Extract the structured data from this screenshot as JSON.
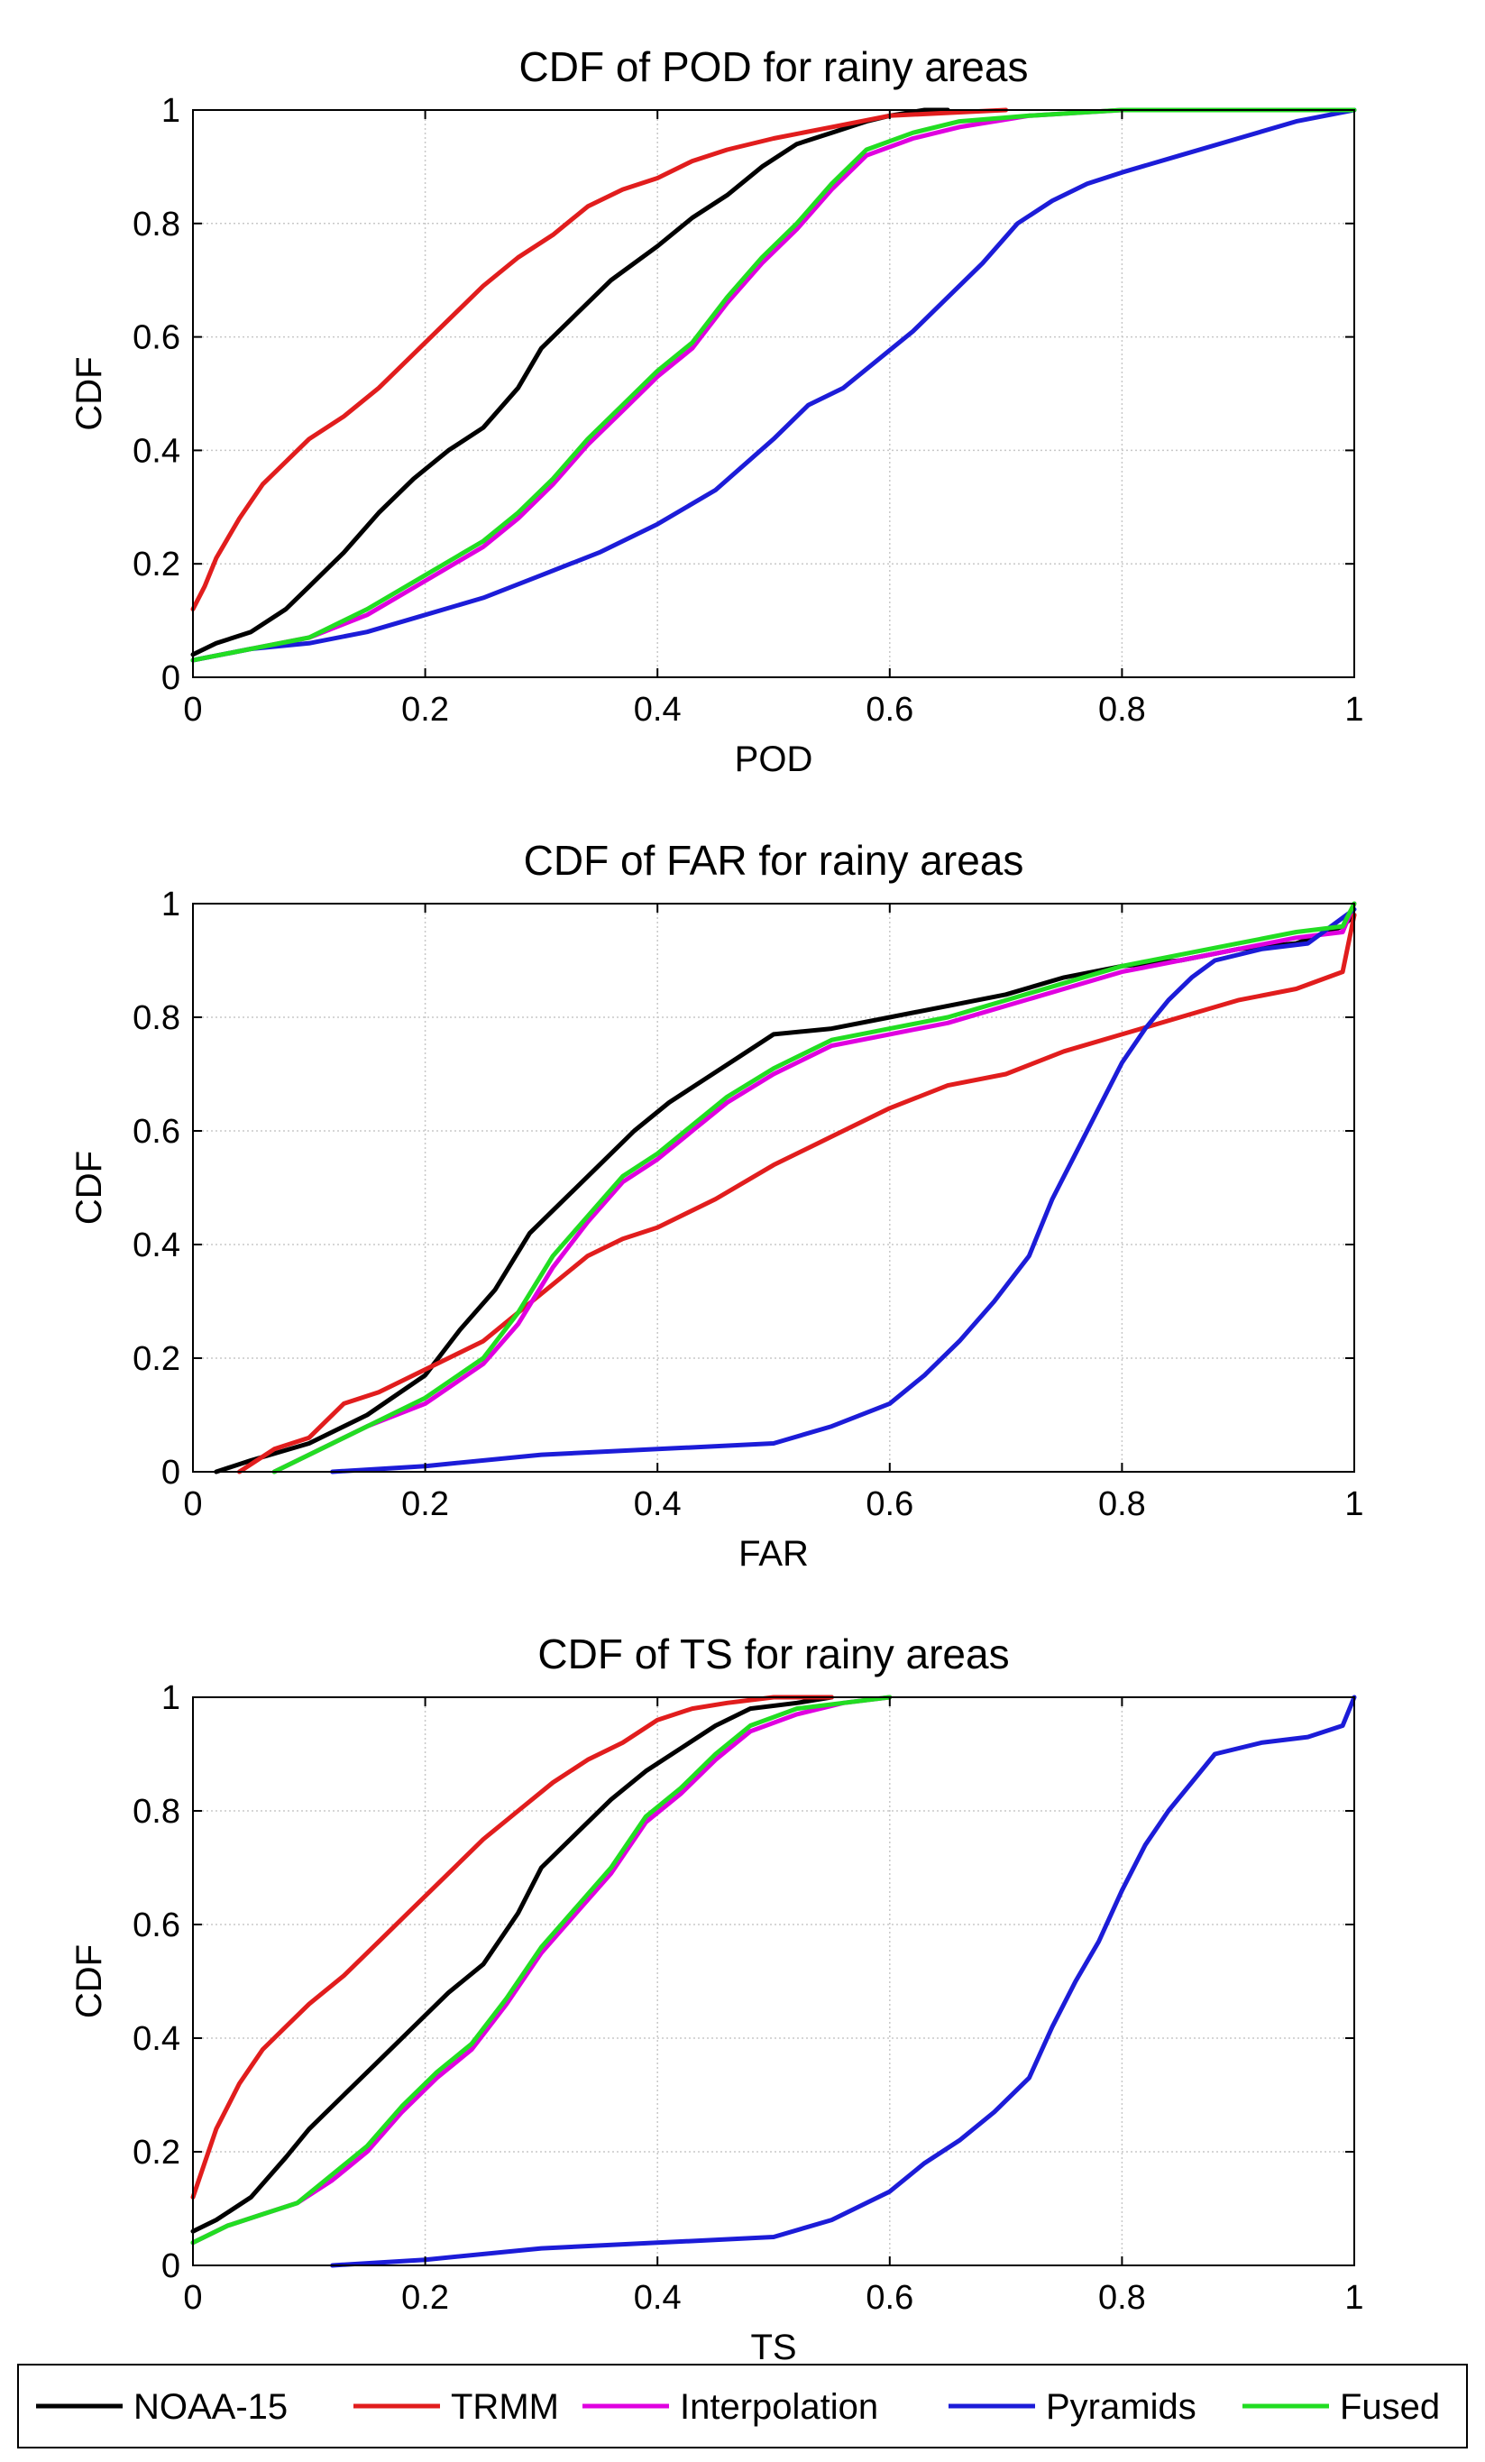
{
  "chart_data": [
    {
      "type": "line",
      "title": "CDF of POD for rainy areas",
      "xlabel": "POD",
      "ylabel": "CDF",
      "xlim": [
        0,
        1
      ],
      "ylim": [
        0,
        1
      ],
      "xticks": [
        "0",
        "0.2",
        "0.4",
        "0.6",
        "0.8",
        "1"
      ],
      "yticks": [
        "0",
        "0.2",
        "0.4",
        "0.6",
        "0.8",
        "1"
      ],
      "grid": true,
      "series": [
        {
          "name": "NOAA-15",
          "color": "#000000",
          "x": [
            0,
            0.02,
            0.05,
            0.08,
            0.1,
            0.13,
            0.16,
            0.19,
            0.22,
            0.25,
            0.28,
            0.3,
            0.33,
            0.36,
            0.4,
            0.43,
            0.46,
            0.49,
            0.52,
            0.55,
            0.58,
            0.6,
            0.63,
            0.65
          ],
          "y": [
            0.04,
            0.06,
            0.08,
            0.12,
            0.16,
            0.22,
            0.29,
            0.35,
            0.4,
            0.44,
            0.51,
            0.58,
            0.64,
            0.7,
            0.76,
            0.81,
            0.85,
            0.9,
            0.94,
            0.96,
            0.98,
            0.99,
            1.0,
            1.0
          ]
        },
        {
          "name": "TRMM",
          "color": "#e11d1d",
          "x": [
            0,
            0.01,
            0.02,
            0.04,
            0.06,
            0.08,
            0.1,
            0.13,
            0.16,
            0.19,
            0.22,
            0.25,
            0.28,
            0.31,
            0.34,
            0.37,
            0.4,
            0.43,
            0.46,
            0.5,
            0.55,
            0.6,
            0.65,
            0.7
          ],
          "y": [
            0.12,
            0.16,
            0.21,
            0.28,
            0.34,
            0.38,
            0.42,
            0.46,
            0.51,
            0.57,
            0.63,
            0.69,
            0.74,
            0.78,
            0.83,
            0.86,
            0.88,
            0.91,
            0.93,
            0.95,
            0.97,
            0.99,
            0.995,
            1.0
          ]
        },
        {
          "name": "Interpolation",
          "color": "#e000e0",
          "x": [
            0,
            0.05,
            0.1,
            0.15,
            0.2,
            0.25,
            0.28,
            0.31,
            0.34,
            0.37,
            0.4,
            0.43,
            0.46,
            0.49,
            0.52,
            0.55,
            0.58,
            0.62,
            0.66,
            0.72,
            0.8,
            0.9,
            1.0
          ],
          "y": [
            0.03,
            0.05,
            0.07,
            0.11,
            0.17,
            0.23,
            0.28,
            0.34,
            0.41,
            0.47,
            0.53,
            0.58,
            0.66,
            0.73,
            0.79,
            0.86,
            0.92,
            0.95,
            0.97,
            0.99,
            1.0,
            1.0,
            1.0
          ]
        },
        {
          "name": "Pyramids",
          "color": "#1c1cd8",
          "x": [
            0,
            0.05,
            0.1,
            0.15,
            0.2,
            0.25,
            0.3,
            0.35,
            0.4,
            0.45,
            0.5,
            0.53,
            0.56,
            0.59,
            0.62,
            0.65,
            0.68,
            0.71,
            0.74,
            0.77,
            0.8,
            0.85,
            0.9,
            0.95,
            1.0
          ],
          "y": [
            0.03,
            0.05,
            0.06,
            0.08,
            0.11,
            0.14,
            0.18,
            0.22,
            0.27,
            0.33,
            0.42,
            0.48,
            0.51,
            0.56,
            0.61,
            0.67,
            0.73,
            0.8,
            0.84,
            0.87,
            0.89,
            0.92,
            0.95,
            0.98,
            1.0
          ]
        },
        {
          "name": "Fused",
          "color": "#22dd22",
          "x": [
            0,
            0.05,
            0.1,
            0.15,
            0.2,
            0.25,
            0.28,
            0.31,
            0.34,
            0.37,
            0.4,
            0.43,
            0.46,
            0.49,
            0.52,
            0.55,
            0.58,
            0.62,
            0.66,
            0.72,
            0.8,
            0.9,
            1.0
          ],
          "y": [
            0.03,
            0.05,
            0.07,
            0.12,
            0.18,
            0.24,
            0.29,
            0.35,
            0.42,
            0.48,
            0.54,
            0.59,
            0.67,
            0.74,
            0.8,
            0.87,
            0.93,
            0.96,
            0.98,
            0.99,
            1.0,
            1.0,
            1.0
          ]
        }
      ]
    },
    {
      "type": "line",
      "title": "CDF of FAR for rainy areas",
      "xlabel": "FAR",
      "ylabel": "CDF",
      "xlim": [
        0,
        1
      ],
      "ylim": [
        0,
        1
      ],
      "xticks": [
        "0",
        "0.2",
        "0.4",
        "0.6",
        "0.8",
        "1"
      ],
      "yticks": [
        "0",
        "0.2",
        "0.4",
        "0.6",
        "0.8",
        "1"
      ],
      "grid": true,
      "series": [
        {
          "name": "NOAA-15",
          "color": "#000000",
          "x": [
            0.02,
            0.05,
            0.1,
            0.15,
            0.2,
            0.23,
            0.26,
            0.29,
            0.32,
            0.35,
            0.38,
            0.41,
            0.44,
            0.47,
            0.5,
            0.55,
            0.6,
            0.65,
            0.7,
            0.75,
            0.8,
            0.85,
            0.9,
            0.95,
            0.99,
            1.0
          ],
          "y": [
            0.0,
            0.02,
            0.05,
            0.1,
            0.17,
            0.25,
            0.32,
            0.42,
            0.48,
            0.54,
            0.6,
            0.65,
            0.69,
            0.73,
            0.77,
            0.78,
            0.8,
            0.82,
            0.84,
            0.87,
            0.89,
            0.9,
            0.92,
            0.93,
            0.96,
            0.98
          ]
        },
        {
          "name": "TRMM",
          "color": "#e11d1d",
          "x": [
            0.04,
            0.07,
            0.1,
            0.13,
            0.16,
            0.19,
            0.22,
            0.25,
            0.28,
            0.31,
            0.34,
            0.37,
            0.4,
            0.45,
            0.5,
            0.55,
            0.6,
            0.65,
            0.7,
            0.75,
            0.8,
            0.85,
            0.9,
            0.95,
            0.99,
            1.0
          ],
          "y": [
            0.0,
            0.04,
            0.06,
            0.12,
            0.14,
            0.17,
            0.2,
            0.23,
            0.28,
            0.33,
            0.38,
            0.41,
            0.43,
            0.48,
            0.54,
            0.59,
            0.64,
            0.68,
            0.7,
            0.74,
            0.77,
            0.8,
            0.83,
            0.85,
            0.88,
            0.98
          ]
        },
        {
          "name": "Interpolation",
          "color": "#e000e0",
          "x": [
            0.07,
            0.1,
            0.15,
            0.2,
            0.25,
            0.28,
            0.31,
            0.34,
            0.37,
            0.4,
            0.43,
            0.46,
            0.5,
            0.55,
            0.6,
            0.65,
            0.7,
            0.75,
            0.8,
            0.85,
            0.9,
            0.95,
            0.99,
            1.0
          ],
          "y": [
            0.0,
            0.03,
            0.08,
            0.12,
            0.19,
            0.26,
            0.36,
            0.44,
            0.51,
            0.55,
            0.6,
            0.65,
            0.7,
            0.75,
            0.77,
            0.79,
            0.82,
            0.85,
            0.88,
            0.9,
            0.92,
            0.94,
            0.95,
            1.0
          ]
        },
        {
          "name": "Pyramids",
          "color": "#1c1cd8",
          "x": [
            0.12,
            0.2,
            0.3,
            0.4,
            0.5,
            0.55,
            0.6,
            0.63,
            0.66,
            0.69,
            0.72,
            0.74,
            0.76,
            0.78,
            0.8,
            0.82,
            0.84,
            0.86,
            0.88,
            0.92,
            0.96,
            1.0
          ],
          "y": [
            0.0,
            0.01,
            0.03,
            0.04,
            0.05,
            0.08,
            0.12,
            0.17,
            0.23,
            0.3,
            0.38,
            0.48,
            0.56,
            0.64,
            0.72,
            0.78,
            0.83,
            0.87,
            0.9,
            0.92,
            0.93,
            0.99
          ]
        },
        {
          "name": "Fused",
          "color": "#22dd22",
          "x": [
            0.07,
            0.1,
            0.15,
            0.2,
            0.25,
            0.28,
            0.31,
            0.34,
            0.37,
            0.4,
            0.43,
            0.46,
            0.5,
            0.55,
            0.6,
            0.65,
            0.7,
            0.75,
            0.8,
            0.85,
            0.9,
            0.95,
            0.99,
            1.0
          ],
          "y": [
            0.0,
            0.03,
            0.08,
            0.13,
            0.2,
            0.28,
            0.38,
            0.45,
            0.52,
            0.56,
            0.61,
            0.66,
            0.71,
            0.76,
            0.78,
            0.8,
            0.83,
            0.86,
            0.89,
            0.91,
            0.93,
            0.95,
            0.96,
            1.0
          ]
        }
      ]
    },
    {
      "type": "line",
      "title": "CDF of TS for rainy areas",
      "xlabel": "TS",
      "ylabel": "CDF",
      "xlim": [
        0,
        1
      ],
      "ylim": [
        0,
        1
      ],
      "xticks": [
        "0",
        "0.2",
        "0.4",
        "0.6",
        "0.8",
        "1"
      ],
      "yticks": [
        "0",
        "0.2",
        "0.4",
        "0.6",
        "0.8",
        "1"
      ],
      "grid": true,
      "series": [
        {
          "name": "NOAA-15",
          "color": "#000000",
          "x": [
            0,
            0.02,
            0.05,
            0.08,
            0.1,
            0.13,
            0.16,
            0.19,
            0.22,
            0.25,
            0.28,
            0.3,
            0.33,
            0.36,
            0.39,
            0.42,
            0.45,
            0.48,
            0.52,
            0.55
          ],
          "y": [
            0.06,
            0.08,
            0.12,
            0.19,
            0.24,
            0.3,
            0.36,
            0.42,
            0.48,
            0.53,
            0.62,
            0.7,
            0.76,
            0.82,
            0.87,
            0.91,
            0.95,
            0.98,
            0.99,
            1.0
          ]
        },
        {
          "name": "TRMM",
          "color": "#e11d1d",
          "x": [
            0,
            0.01,
            0.02,
            0.04,
            0.06,
            0.08,
            0.1,
            0.13,
            0.16,
            0.19,
            0.22,
            0.25,
            0.28,
            0.31,
            0.34,
            0.37,
            0.4,
            0.43,
            0.46,
            0.5,
            0.55
          ],
          "y": [
            0.12,
            0.18,
            0.24,
            0.32,
            0.38,
            0.42,
            0.46,
            0.51,
            0.57,
            0.63,
            0.69,
            0.75,
            0.8,
            0.85,
            0.89,
            0.92,
            0.96,
            0.98,
            0.99,
            1.0,
            1.0
          ]
        },
        {
          "name": "Interpolation",
          "color": "#e000e0",
          "x": [
            0,
            0.03,
            0.06,
            0.09,
            0.12,
            0.15,
            0.18,
            0.21,
            0.24,
            0.27,
            0.3,
            0.33,
            0.36,
            0.39,
            0.42,
            0.45,
            0.48,
            0.52,
            0.56,
            0.6
          ],
          "y": [
            0.04,
            0.07,
            0.09,
            0.11,
            0.15,
            0.2,
            0.27,
            0.33,
            0.38,
            0.46,
            0.55,
            0.62,
            0.69,
            0.78,
            0.83,
            0.89,
            0.94,
            0.97,
            0.99,
            1.0
          ]
        },
        {
          "name": "Pyramids",
          "color": "#1c1cd8",
          "x": [
            0.12,
            0.2,
            0.3,
            0.4,
            0.5,
            0.55,
            0.6,
            0.63,
            0.66,
            0.69,
            0.72,
            0.74,
            0.76,
            0.78,
            0.8,
            0.82,
            0.84,
            0.86,
            0.88,
            0.92,
            0.96,
            0.99,
            1.0
          ],
          "y": [
            0.0,
            0.01,
            0.03,
            0.04,
            0.05,
            0.08,
            0.13,
            0.18,
            0.22,
            0.27,
            0.33,
            0.42,
            0.5,
            0.57,
            0.66,
            0.74,
            0.8,
            0.85,
            0.9,
            0.92,
            0.93,
            0.95,
            1.0
          ]
        },
        {
          "name": "Fused",
          "color": "#22dd22",
          "x": [
            0,
            0.03,
            0.06,
            0.09,
            0.12,
            0.15,
            0.18,
            0.21,
            0.24,
            0.27,
            0.3,
            0.33,
            0.36,
            0.39,
            0.42,
            0.45,
            0.48,
            0.52,
            0.56,
            0.6
          ],
          "y": [
            0.04,
            0.07,
            0.09,
            0.11,
            0.16,
            0.21,
            0.28,
            0.34,
            0.39,
            0.47,
            0.56,
            0.63,
            0.7,
            0.79,
            0.84,
            0.9,
            0.95,
            0.98,
            0.99,
            1.0
          ]
        }
      ]
    }
  ],
  "legend": {
    "position": "bottom",
    "entries": [
      {
        "label": "NOAA-15",
        "color": "#000000"
      },
      {
        "label": "TRMM",
        "color": "#e11d1d"
      },
      {
        "label": "Interpolation",
        "color": "#e000e0"
      },
      {
        "label": "Pyramids",
        "color": "#1c1cd8"
      },
      {
        "label": "Fused",
        "color": "#22dd22"
      }
    ]
  }
}
